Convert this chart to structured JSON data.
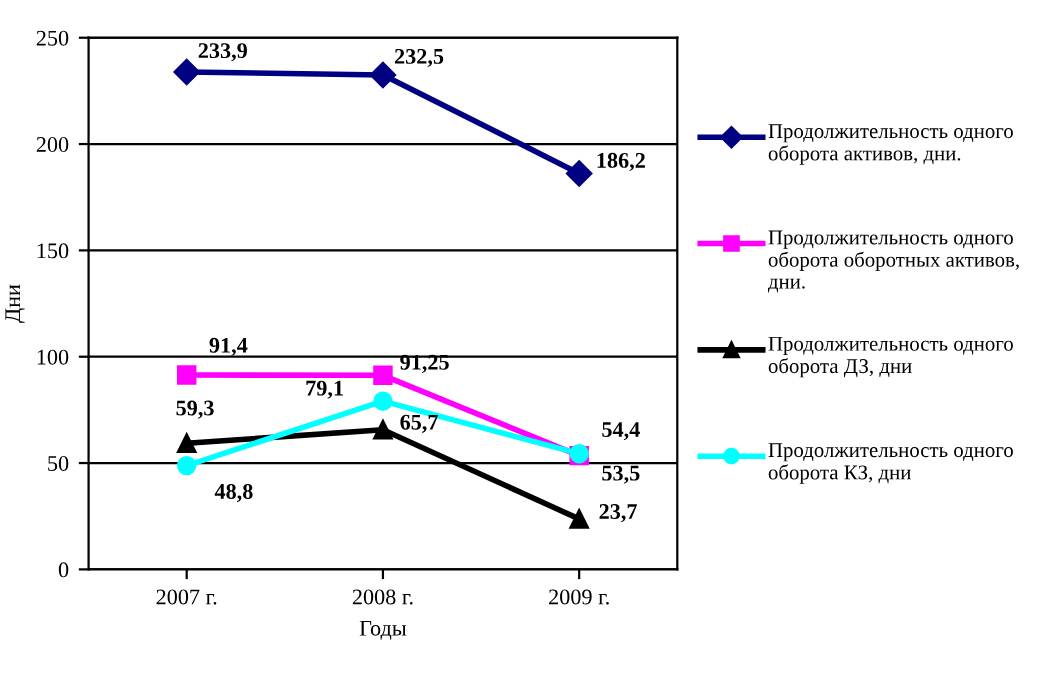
{
  "chart_data": {
    "type": "line",
    "xlabel": "Годы",
    "ylabel": "Дни",
    "categories": [
      "2007 г.",
      "2008 г.",
      "2009 г."
    ],
    "series": [
      {
        "name": "Продолжительность одного оборота активов, дни.",
        "color": "#000080",
        "marker": "diamond",
        "values": [
          233.9,
          232.5,
          186.2
        ],
        "value_labels": [
          "233,9",
          "232,5",
          "186,2"
        ]
      },
      {
        "name": "Продолжительность одного оборота оборотных активов, дни.",
        "color": "#ff00ff",
        "marker": "square",
        "values": [
          91.4,
          91.25,
          53.5
        ],
        "value_labels": [
          "91,4",
          "91,25",
          "53,5"
        ]
      },
      {
        "name": "Продолжительность одного оборота ДЗ, дни",
        "color": "#000000",
        "marker": "triangle",
        "values": [
          59.3,
          65.7,
          23.7
        ],
        "value_labels": [
          "59,3",
          "65,7",
          "23,7"
        ]
      },
      {
        "name": "Продолжительность одного оборота КЗ, дни",
        "color": "#00ffff",
        "marker": "circle",
        "values": [
          48.8,
          79.1,
          54.4
        ],
        "value_labels": [
          "48,8",
          "79,1",
          "54,4"
        ]
      }
    ],
    "ylim": [
      0,
      250
    ],
    "yticks": [
      0,
      50,
      100,
      150,
      200,
      250
    ],
    "grid": "y",
    "legend": "right",
    "line_style": "solid"
  }
}
